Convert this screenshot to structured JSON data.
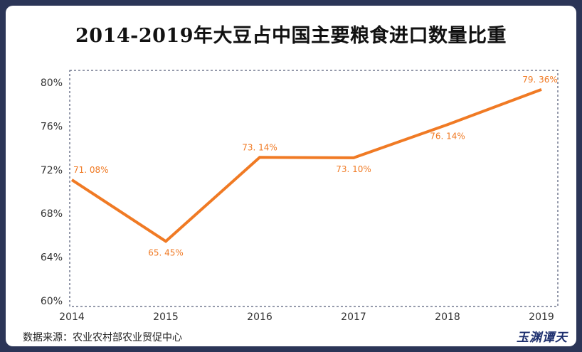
{
  "chart_data": {
    "type": "line",
    "title": "2014-2019年大豆占中国主要粮食进口数量比重",
    "categories": [
      "2014",
      "2015",
      "2016",
      "2017",
      "2018",
      "2019"
    ],
    "values": [
      71.08,
      65.45,
      73.14,
      73.1,
      76.14,
      79.36
    ],
    "data_labels": [
      "71. 08%",
      "65. 45%",
      "73. 14%",
      "73. 10%",
      "76. 14%",
      "79. 36%"
    ],
    "y_ticks": [
      "60%",
      "64%",
      "68%",
      "72%",
      "76%",
      "80%"
    ],
    "ylim": [
      60,
      81
    ],
    "line_color": "#f07a24",
    "grid": false
  },
  "source": "数据来源：农业农村部农业贸促中心",
  "brand": "玉渊谭天"
}
